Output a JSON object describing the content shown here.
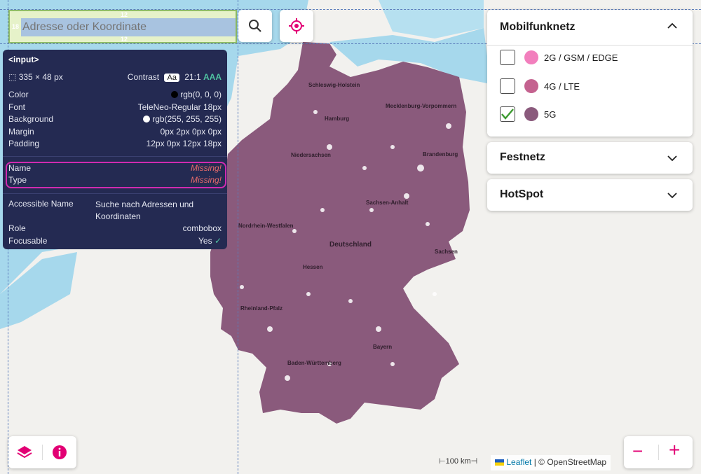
{
  "search": {
    "placeholder": "Adresse oder Koordinate",
    "pad_top": "12",
    "pad_bottom": "12",
    "pad_left": "18"
  },
  "map": {
    "country_label": "Deutschland",
    "regions": [
      "Schleswig-Holstein",
      "Mecklenburg-Vorpommern",
      "Hamburg",
      "Niedersachsen",
      "Brandenburg",
      "Sachsen-Anhalt",
      "Nordrhein-Westfalen",
      "Sachsen",
      "Hessen",
      "Rheinland-Pfalz",
      "Bayern",
      "Baden-Württemberg"
    ],
    "coverage_color": "#8a5a7c"
  },
  "inspector": {
    "tag": "<input>",
    "size": "335 × 48 px",
    "contrast_label": "Contrast",
    "contrast_aa": "Aa",
    "contrast_ratio": "21:1",
    "contrast_level": "AAA",
    "color_label": "Color",
    "color_value": "rgb(0, 0, 0)",
    "font_label": "Font",
    "font_value": "TeleNeo-Regular 18px",
    "background_label": "Background",
    "background_value": "rgb(255, 255, 255)",
    "margin_label": "Margin",
    "margin_value": "0px 2px 0px 0px",
    "padding_label": "Padding",
    "padding_value": "12px 0px 12px 18px",
    "name_label": "Name",
    "name_value": "Missing!",
    "type_label": "Type",
    "type_value": "Missing!",
    "accessible_name_label": "Accessible Name",
    "accessible_name_value": "Suche nach Adressen und Koordinaten",
    "role_label": "Role",
    "role_value": "combobox",
    "focusable_label": "Focusable",
    "focusable_value": "Yes"
  },
  "panels": {
    "mobile": {
      "title": "Mobilfunknetz",
      "options": [
        {
          "label": "2G / GSM / EDGE",
          "color": "#f27fbd",
          "checked": false
        },
        {
          "label": "4G / LTE",
          "color": "#c4628f",
          "checked": false
        },
        {
          "label": "5G",
          "color": "#8a5a7c",
          "checked": true
        }
      ]
    },
    "festnetz": {
      "title": "Festnetz"
    },
    "hotspot": {
      "title": "HotSpot"
    }
  },
  "controls": {
    "zoom_out": "−",
    "zoom_in": "+"
  },
  "scale": "100 km",
  "attribution": {
    "link": "Leaflet",
    "rest": "| © OpenStreetMap"
  },
  "colors": {
    "accent": "#e20074",
    "tooltip_bg": "#242a52"
  }
}
